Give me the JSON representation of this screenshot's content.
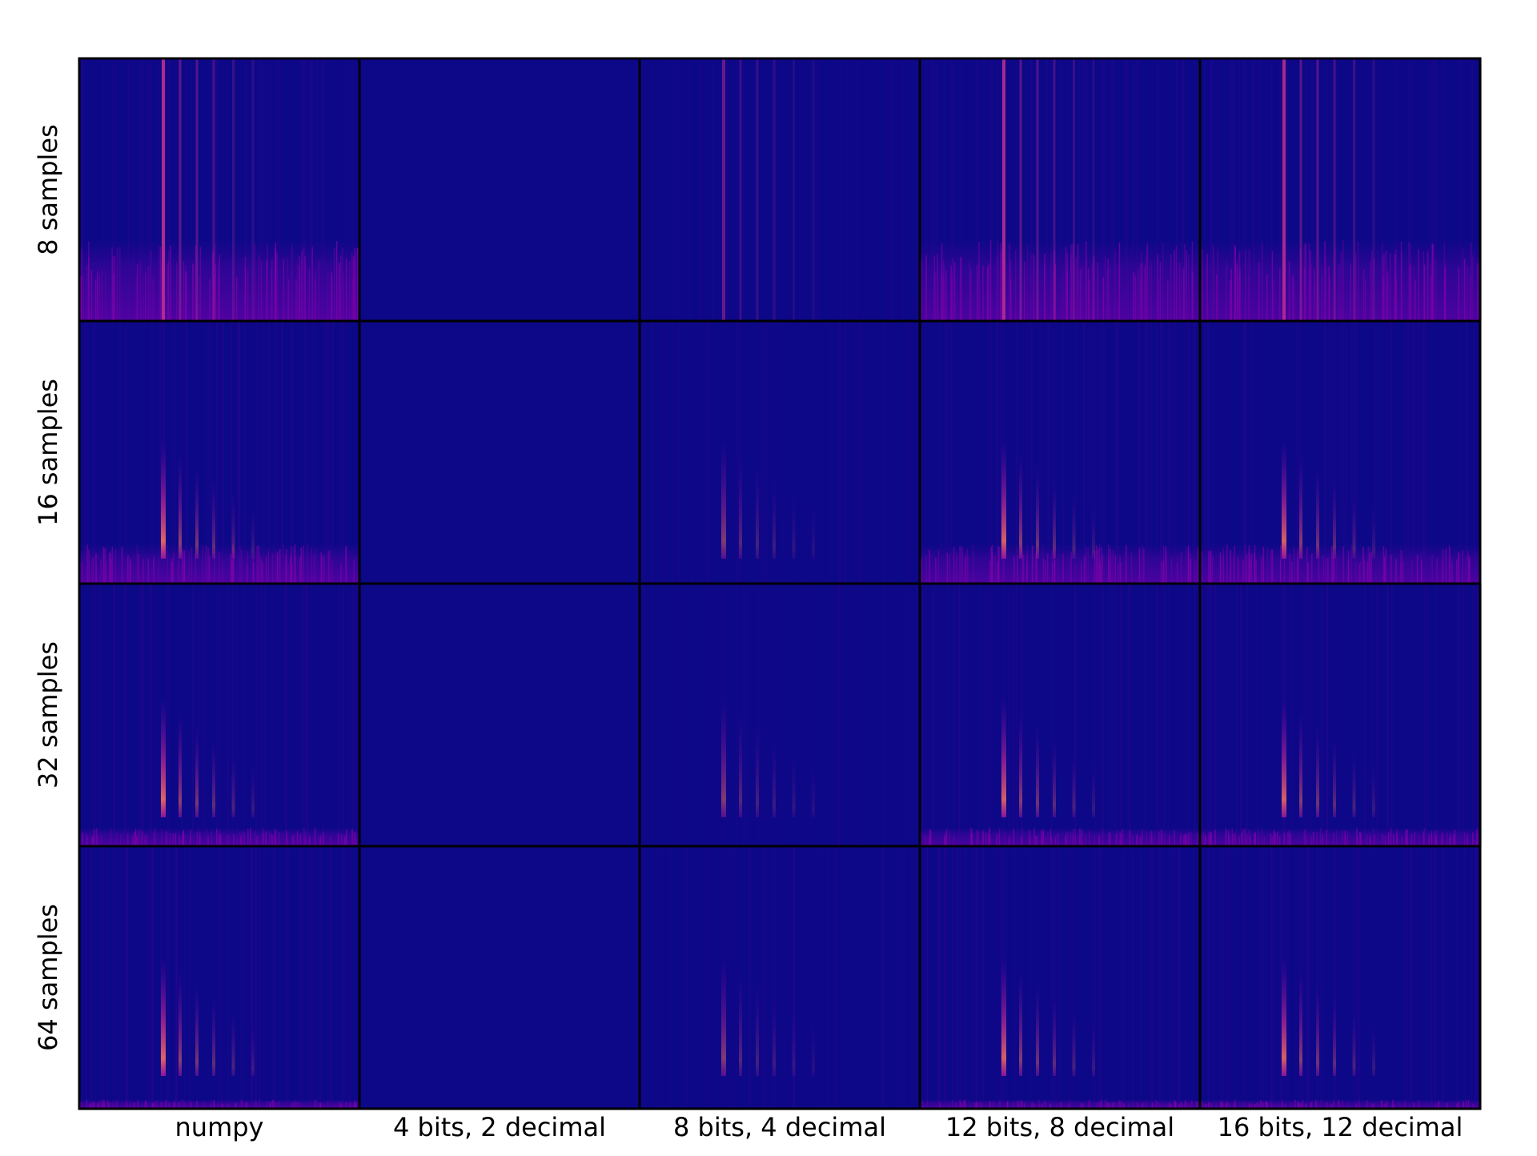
{
  "chart_data": {
    "type": "heatmap",
    "title": "",
    "colormap": "plasma",
    "background_color": "#0d0887",
    "columns": [
      "numpy",
      "4 bits, 2 decimal",
      "8 bits, 4 decimal",
      "12 bits, 8 decimal",
      "16 bits, 12 decimal"
    ],
    "rows": [
      "8 samples",
      "16 samples",
      "32 samples",
      "64 samples"
    ],
    "row_noise_band_fraction": [
      0.31,
      0.15,
      0.07,
      0.035
    ],
    "column_intensity": [
      1.0,
      0.0,
      0.55,
      0.95,
      0.95
    ],
    "column_noise_band": [
      true,
      false,
      false,
      true,
      true
    ],
    "peak_positions_fraction": [
      0.3,
      0.36,
      0.42,
      0.48,
      0.55,
      0.62
    ],
    "axes_ticks": false
  }
}
